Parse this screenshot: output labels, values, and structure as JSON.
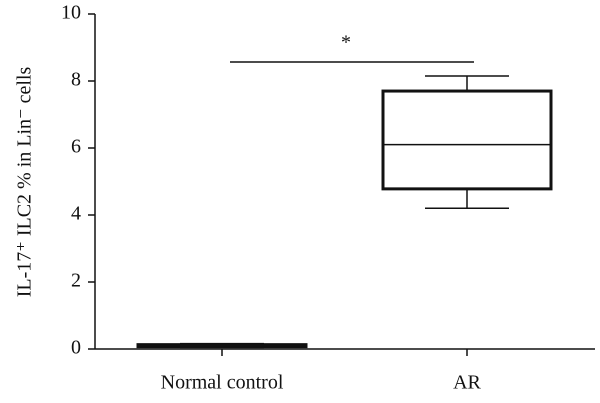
{
  "chart_data": {
    "type": "box",
    "ylabel": "IL-17⁺ ILC2 % in Lin⁻ cells",
    "categories": [
      "Normal control",
      "AR"
    ],
    "boxes": [
      {
        "min": 0.05,
        "q1": 0.07,
        "median": 0.1,
        "q3": 0.13,
        "max": 0.16
      },
      {
        "min": 4.2,
        "q1": 4.78,
        "median": 6.1,
        "q3": 7.7,
        "max": 8.15
      }
    ],
    "color": "#111111",
    "ylim": [
      0,
      10
    ],
    "yticks": [
      0,
      2,
      4,
      6,
      8,
      10
    ],
    "annotation": "*"
  }
}
